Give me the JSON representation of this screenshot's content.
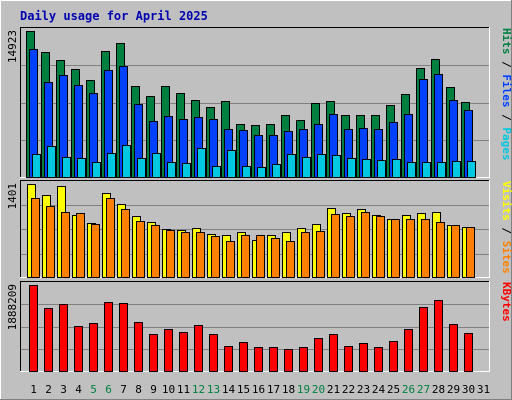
{
  "chart_data": {
    "type": "bar",
    "title": "Daily usage for April 2025",
    "categories": [
      "1",
      "2",
      "3",
      "4",
      "5",
      "6",
      "7",
      "8",
      "9",
      "10",
      "11",
      "12",
      "13",
      "14",
      "15",
      "16",
      "17",
      "18",
      "19",
      "20",
      "21",
      "22",
      "23",
      "24",
      "25",
      "26",
      "27",
      "28",
      "29",
      "30",
      "31"
    ],
    "weekend_categories": [
      "5",
      "6",
      "12",
      "13",
      "19",
      "20",
      "26",
      "27"
    ],
    "grid": true,
    "panels": [
      {
        "name": "hits-files-pages",
        "ymax_label": "14923",
        "ymax": 14923,
        "right_labels": [
          {
            "text": "Pages",
            "color": "#00c8e0"
          },
          {
            "text": " / ",
            "color": "#000000"
          },
          {
            "text": "Files",
            "color": "#0040ff"
          },
          {
            "text": " / ",
            "color": "#000000"
          },
          {
            "text": "Hits",
            "color": "#008040"
          }
        ],
        "series": [
          {
            "name": "Hits",
            "color": "#008040",
            "values": [
              14923,
              12800,
              11930,
              11020,
              9990,
              12900,
              13690,
              9300,
              8300,
              9320,
              8660,
              7920,
              7220,
              7860,
              5450,
              5330,
              5450,
              6400,
              5840,
              7600,
              7820,
              6410,
              6410,
              6420,
              7360,
              8480,
              11130,
              12100,
              9280,
              7730,
              0
            ]
          },
          {
            "name": "Files",
            "color": "#0040ff",
            "values": [
              13100,
              9750,
              10450,
              9470,
              8580,
              10970,
              11380,
              7470,
              5810,
              6300,
              5990,
              6220,
              5950,
              4990,
              4830,
              4340,
              4390,
              4740,
              4940,
              5520,
              6490,
              4960,
              5080,
              4990,
              5700,
              6510,
              10060,
              10600,
              7900,
              6870,
              0
            ]
          },
          {
            "name": "Pages",
            "color": "#00c8e0",
            "values": [
              2480,
              3260,
              2150,
              2020,
              1620,
              2500,
              3400,
              2040,
              2540,
              1620,
              1500,
              3010,
              1250,
              2840,
              1250,
              1080,
              1380,
              2430,
              2120,
              2430,
              2310,
              2030,
              1910,
              1850,
              1910,
              1600,
              1580,
              1580,
              1770,
              1740,
              0
            ]
          }
        ]
      },
      {
        "name": "visits-sites",
        "ymax_label": "1401",
        "ymax": 1401,
        "right_labels": [
          {
            "text": "Sites",
            "color": "#ff8000"
          },
          {
            "text": " / ",
            "color": "#000000"
          },
          {
            "text": "Visits",
            "color": "#ffff00"
          }
        ],
        "series": [
          {
            "name": "Visits",
            "color": "#ffff00",
            "values": [
              1401,
              1240,
              1370,
              945,
              825,
              1260,
              1110,
              930,
              840,
              725,
              720,
              745,
              653,
              636,
              690,
              570,
              636,
              690,
              745,
              798,
              1038,
              975,
              1035,
              946,
              885,
              942,
              965,
              985,
              787,
              753,
              0
            ]
          },
          {
            "name": "Sites",
            "color": "#ff8000",
            "values": [
              1190,
              1080,
              990,
              975,
              810,
              1185,
              1028,
              855,
              790,
              720,
              690,
              690,
              625,
              548,
              640,
              648,
              590,
              558,
              687,
              707,
              949,
              922,
              988,
              930,
              873,
              875,
              878,
              835,
              787,
              760,
              0
            ]
          }
        ]
      },
      {
        "name": "kbytes",
        "ymax_label": "1888209",
        "ymax": 1888209,
        "right_labels": [
          {
            "text": "KBytes",
            "color": "#ff0000"
          }
        ],
        "series": [
          {
            "name": "KBytes",
            "color": "#ff0000",
            "values": [
              1888209,
              1380000,
              1470000,
              1000000,
              1070000,
              1520000,
              1500000,
              1080000,
              827000,
              941000,
              877000,
              1030000,
              827000,
              566000,
              660000,
              541000,
              540000,
              500000,
              541000,
              734000,
              820000,
              560000,
              640000,
              550000,
              664000,
              934000,
              1400000,
              1570000,
              1050000,
              850000,
              0
            ]
          }
        ]
      }
    ]
  }
}
